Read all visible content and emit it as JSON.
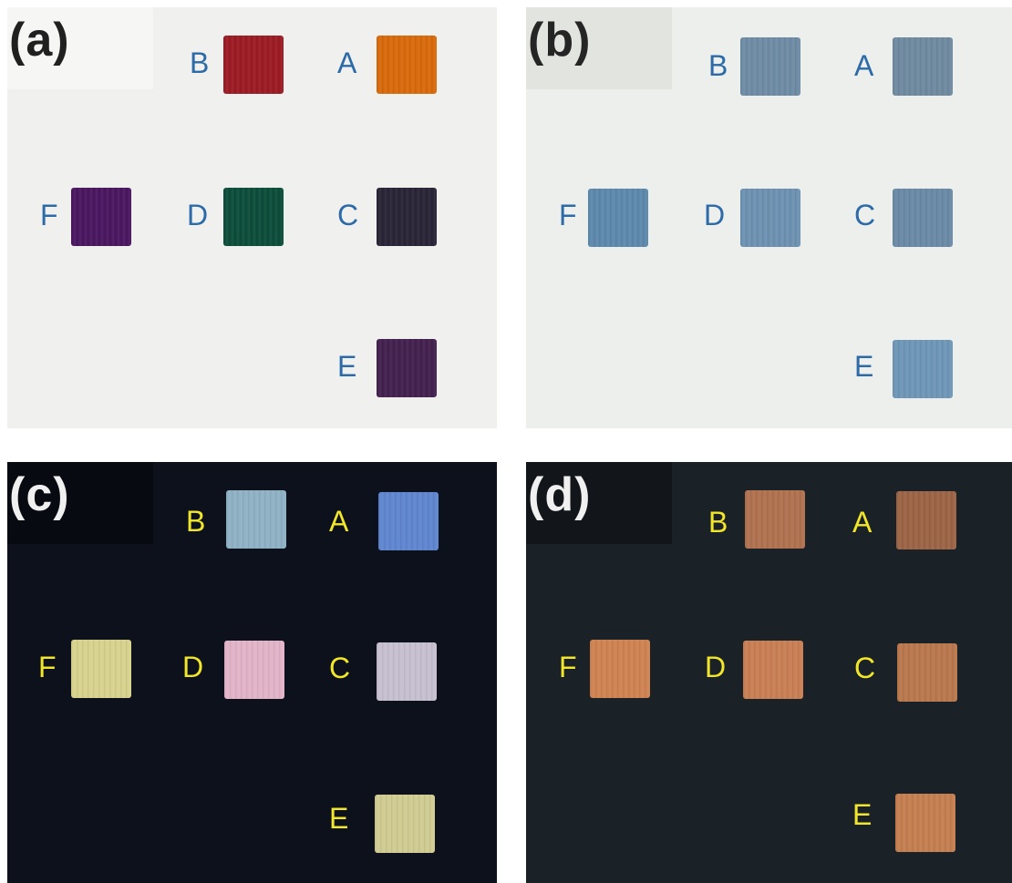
{
  "panels": [
    {
      "id": "a",
      "tag": "(a)",
      "background": "#f0f1ee",
      "tag_box": "#f6f7f5",
      "tag_color": "#202020",
      "label_color": "#2d6aa8",
      "squares": [
        {
          "label": "B",
          "color": "#9c1b24"
        },
        {
          "label": "A",
          "color": "#d86a0c"
        },
        {
          "label": "F",
          "color": "#4a1760"
        },
        {
          "label": "D",
          "color": "#0e4d3b"
        },
        {
          "label": "C",
          "color": "#2a2537"
        },
        {
          "label": "E",
          "color": "#44214f"
        }
      ]
    },
    {
      "id": "b",
      "tag": "(b)",
      "background": "#edefec",
      "tag_box": "#e2e4e0",
      "tag_color": "#252525",
      "label_color": "#2d6aa8",
      "squares": [
        {
          "label": "B",
          "color": "#6e8ca4"
        },
        {
          "label": "A",
          "color": "#6f8aa0"
        },
        {
          "label": "F",
          "color": "#5d89ac"
        },
        {
          "label": "D",
          "color": "#6d92b2"
        },
        {
          "label": "C",
          "color": "#6a8aa6"
        },
        {
          "label": "E",
          "color": "#6f96b8"
        }
      ]
    },
    {
      "id": "c",
      "tag": "(c)",
      "background": "#0c111c",
      "tag_box": "#070a10",
      "tag_color": "#f0f0f0",
      "label_color": "#f2e62a",
      "squares": [
        {
          "label": "B",
          "color": "#8fb2c4"
        },
        {
          "label": "A",
          "color": "#5f86cf"
        },
        {
          "label": "F",
          "color": "#d8d28e"
        },
        {
          "label": "D",
          "color": "#e2b4c8"
        },
        {
          "label": "C",
          "color": "#c6bfd0"
        },
        {
          "label": "E",
          "color": "#cfcb92"
        }
      ]
    },
    {
      "id": "d",
      "tag": "(d)",
      "background": "#1b2227",
      "tag_box": "#12161a",
      "tag_color": "#f0f0f0",
      "label_color": "#f2e62a",
      "squares": [
        {
          "label": "B",
          "color": "#b07250"
        },
        {
          "label": "A",
          "color": "#9c6446"
        },
        {
          "label": "F",
          "color": "#cf8352"
        },
        {
          "label": "D",
          "color": "#c97f54"
        },
        {
          "label": "C",
          "color": "#b9784e"
        },
        {
          "label": "E",
          "color": "#c47f50"
        }
      ]
    }
  ]
}
